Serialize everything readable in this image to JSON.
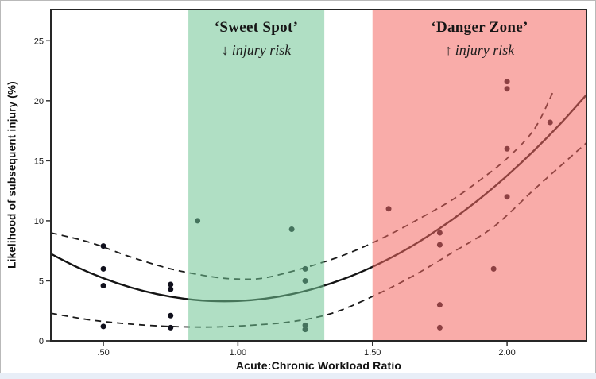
{
  "chart_data": {
    "type": "scatter",
    "title": "",
    "xlabel": "Acute:Chronic Workload Ratio",
    "ylabel": "Likelihood of subsequent injury (%)",
    "xlim": [
      0.305,
      2.295
    ],
    "ylim": [
      0,
      27.6
    ],
    "grid": false,
    "legend": "none",
    "x_ticks": [
      {
        "label": ".50",
        "value": 0.5
      },
      {
        "label": "1.00",
        "value": 1.0
      },
      {
        "label": "1.50",
        "value": 1.5
      },
      {
        "label": "2.00",
        "value": 2.0
      }
    ],
    "y_ticks": [
      {
        "label": "0",
        "value": 0
      },
      {
        "label": "5",
        "value": 5
      },
      {
        "label": "10",
        "value": 10
      },
      {
        "label": "15",
        "value": 15
      },
      {
        "label": "20",
        "value": 20
      },
      {
        "label": "25",
        "value": 25
      }
    ],
    "point_color": "#10101c",
    "line_color": "#1a1a1a",
    "points": [
      [
        0.5,
        7.9
      ],
      [
        0.5,
        6.0
      ],
      [
        0.5,
        4.6
      ],
      [
        0.5,
        1.2
      ],
      [
        0.75,
        4.7
      ],
      [
        0.75,
        4.3
      ],
      [
        0.75,
        2.1
      ],
      [
        0.75,
        1.1
      ],
      [
        0.85,
        10.0
      ],
      [
        1.2,
        9.3
      ],
      [
        1.25,
        6.0
      ],
      [
        1.25,
        5.0
      ],
      [
        1.25,
        1.3
      ],
      [
        1.25,
        0.95
      ],
      [
        1.56,
        11.0
      ],
      [
        1.75,
        9.0
      ],
      [
        1.75,
        8.0
      ],
      [
        1.75,
        3.0
      ],
      [
        1.75,
        1.1
      ],
      [
        1.95,
        6.0
      ],
      [
        2.0,
        21.6
      ],
      [
        2.0,
        21.0
      ],
      [
        2.0,
        16.0
      ],
      [
        2.0,
        12.0
      ],
      [
        2.16,
        18.2
      ]
    ],
    "curves": {
      "fit": {
        "name": "polynomial-fit",
        "style": "solid",
        "points": [
          [
            0.305,
            7.25
          ],
          [
            0.4,
            6.17
          ],
          [
            0.5,
            5.22
          ],
          [
            0.6,
            4.46
          ],
          [
            0.7,
            3.89
          ],
          [
            0.8,
            3.51
          ],
          [
            0.9,
            3.32
          ],
          [
            1.0,
            3.32
          ],
          [
            1.1,
            3.51
          ],
          [
            1.2,
            3.89
          ],
          [
            1.3,
            4.46
          ],
          [
            1.4,
            5.22
          ],
          [
            1.5,
            6.17
          ],
          [
            1.6,
            7.3
          ],
          [
            1.7,
            8.64
          ],
          [
            1.8,
            10.16
          ],
          [
            1.9,
            11.86
          ],
          [
            2.0,
            13.76
          ],
          [
            2.1,
            15.85
          ],
          [
            2.2,
            18.13
          ],
          [
            2.295,
            20.5
          ]
        ]
      },
      "ci_upper": {
        "name": "confidence-upper",
        "style": "dashed",
        "points": [
          [
            0.305,
            9.0
          ],
          [
            0.45,
            8.2
          ],
          [
            0.6,
            7.0
          ],
          [
            0.75,
            6.0
          ],
          [
            0.9,
            5.35
          ],
          [
            1.0,
            5.15
          ],
          [
            1.1,
            5.25
          ],
          [
            1.25,
            6.1
          ],
          [
            1.4,
            7.2
          ],
          [
            1.55,
            8.7
          ],
          [
            1.7,
            10.5
          ],
          [
            1.8,
            11.8
          ],
          [
            1.9,
            13.4
          ],
          [
            2.0,
            15.2
          ],
          [
            2.1,
            17.6
          ],
          [
            2.17,
            20.7
          ]
        ]
      },
      "ci_lower": {
        "name": "confidence-lower",
        "style": "dashed",
        "points": [
          [
            0.305,
            2.3
          ],
          [
            0.45,
            1.75
          ],
          [
            0.6,
            1.4
          ],
          [
            0.75,
            1.2
          ],
          [
            0.9,
            1.15
          ],
          [
            1.05,
            1.3
          ],
          [
            1.2,
            1.6
          ],
          [
            1.35,
            2.3
          ],
          [
            1.5,
            3.7
          ],
          [
            1.65,
            5.4
          ],
          [
            1.8,
            7.4
          ],
          [
            1.95,
            9.5
          ],
          [
            2.1,
            12.6
          ],
          [
            2.2,
            14.6
          ],
          [
            2.295,
            16.5
          ]
        ]
      }
    },
    "zones": [
      {
        "id": "sweet-spot",
        "title": "‘Sweet Spot’",
        "arrow": "↓",
        "subtitle": "injury risk",
        "x_start": 0.816,
        "x_end": 1.321,
        "overlay_color": "rgba(112,196,148,0.55)"
      },
      {
        "id": "danger-zone",
        "title": "‘Danger Zone’",
        "arrow": "↑",
        "subtitle": "injury risk",
        "x_start": 1.5,
        "x_end": 2.295,
        "overlay_color": "rgba(244,104,99,0.55)"
      }
    ]
  }
}
